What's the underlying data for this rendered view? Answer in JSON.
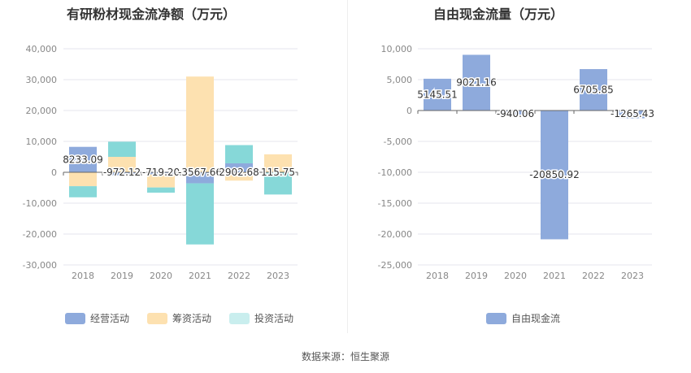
{
  "source": "数据来源：恒生聚源",
  "chart_data": [
    {
      "type": "bar",
      "stacked": true,
      "title": "有研粉材现金流净额（万元）",
      "categories": [
        "2018",
        "2019",
        "2020",
        "2021",
        "2022",
        "2023"
      ],
      "series": [
        {
          "name": "经营活动",
          "color": "#8eaadc",
          "values": [
            8233.09,
            -972.12,
            -719.2,
            -3567.66,
            2902.68,
            115.75
          ]
        },
        {
          "name": "筹资活动",
          "color": "#fde1b0",
          "values": [
            -4500,
            5000,
            -4200,
            31000,
            -2700,
            5700
          ]
        },
        {
          "name": "投资活动",
          "color": "#86d8d8",
          "values": [
            -3600,
            4900,
            -1700,
            -19800,
            5900,
            -7200
          ]
        }
      ],
      "data_labels": [
        "8233.09",
        "-972.12",
        "-719.20",
        "-3567.66",
        "2902.68",
        "115.75"
      ],
      "yticks": [
        "40,000",
        "30,000",
        "20,000",
        "10,000",
        "0",
        "-10,000",
        "-20,000",
        "-30,000"
      ],
      "ylim": [
        -30000,
        40000
      ],
      "grid": true,
      "legend": "bottom-left"
    },
    {
      "type": "bar",
      "title": "自由现金流量（万元）",
      "categories": [
        "2018",
        "2019",
        "2020",
        "2021",
        "2022",
        "2023"
      ],
      "series": [
        {
          "name": "自由现金流",
          "color": "#8eaadc",
          "values": [
            5145.51,
            9021.16,
            -940.06,
            -20850.92,
            6705.85,
            -1265.43
          ]
        }
      ],
      "data_labels": [
        "5145.51",
        "9021.16",
        "-940.06",
        "-20850.92",
        "6705.85",
        "-1265.43"
      ],
      "yticks": [
        "10,000",
        "5,000",
        "0",
        "-5,000",
        "-10,000",
        "-15,000",
        "-20,000",
        "-25,000"
      ],
      "ylim": [
        -25000,
        10000
      ],
      "grid": true,
      "legend": "bottom"
    }
  ]
}
